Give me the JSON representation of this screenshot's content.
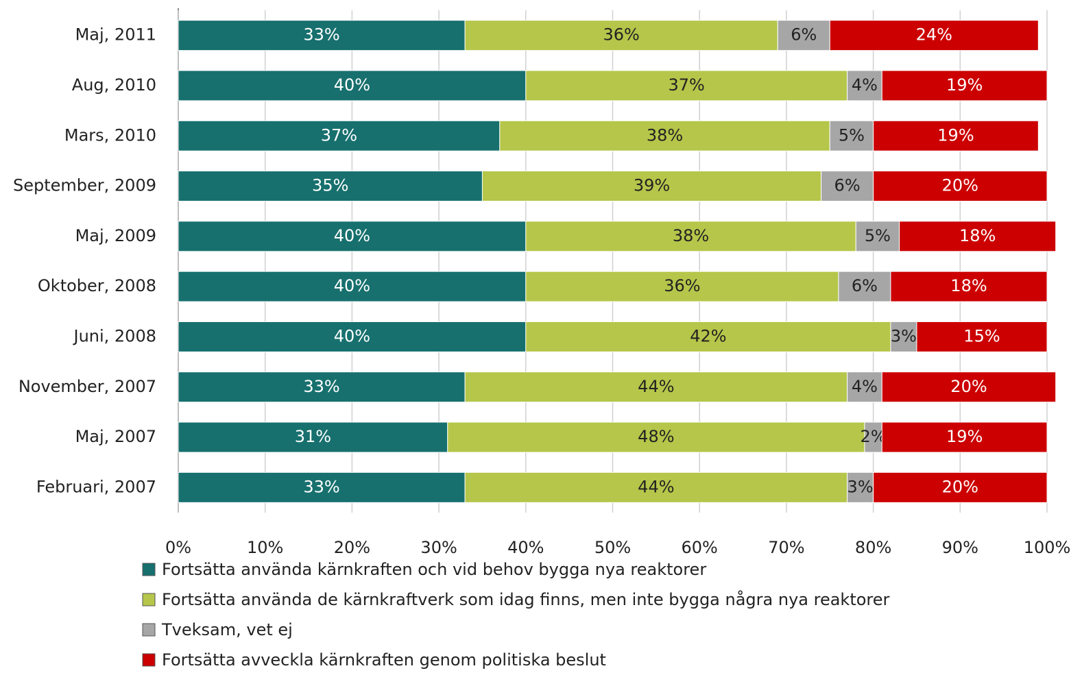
{
  "chart_data": {
    "type": "stacked_bar_horizontal",
    "categories": [
      "Maj, 2011",
      "Aug, 2010",
      "Mars, 2010",
      "September, 2009",
      "Maj, 2009",
      "Oktober, 2008",
      "Juni, 2008",
      "November, 2007",
      "Maj, 2007",
      "Februari, 2007"
    ],
    "series": [
      {
        "name": "Fortsätta använda kärnkraften och vid behov bygga nya reaktorer",
        "color": "#17706e",
        "values": [
          33,
          40,
          37,
          35,
          40,
          40,
          40,
          33,
          31,
          33
        ],
        "value_labels": [
          "33%",
          "40%",
          "37%",
          "35%",
          "40%",
          "40%",
          "40%",
          "33%",
          "31%",
          "33%"
        ]
      },
      {
        "name": "Fortsätta använda de kärnkraftverk som idag finns, men inte bygga några nya reaktorer",
        "color": "#b5c64a",
        "values": [
          36,
          37,
          38,
          39,
          38,
          36,
          42,
          44,
          48,
          44
        ],
        "value_labels": [
          "36%",
          "37%",
          "38%",
          "39%",
          "38%",
          "36%",
          "42%",
          "44%",
          "48%",
          "44%"
        ]
      },
      {
        "name": "Tveksam, vet ej",
        "color": "#a6a6a6",
        "values": [
          6,
          4,
          5,
          6,
          5,
          6,
          3,
          4,
          2,
          3
        ],
        "value_labels": [
          "6%",
          "4%",
          "5%",
          "6%",
          "5%",
          "6%",
          "3%",
          "4%",
          "2%",
          "3%"
        ]
      },
      {
        "name": "Fortsätta avveckla kärnkraften genom politiska beslut",
        "color": "#cc0000",
        "values": [
          24,
          19,
          19,
          20,
          18,
          18,
          15,
          20,
          19,
          20
        ],
        "value_labels": [
          "24%",
          "19%",
          "19%",
          "20%",
          "18%",
          "18%",
          "15%",
          "20%",
          "19%",
          "20%"
        ]
      }
    ],
    "xlim": [
      0,
      100
    ],
    "xticks": [
      {
        "value": 0,
        "label": "0%"
      },
      {
        "value": 10,
        "label": "10%"
      },
      {
        "value": 20,
        "label": "20%"
      },
      {
        "value": 30,
        "label": "30%"
      },
      {
        "value": 40,
        "label": "40%"
      },
      {
        "value": 50,
        "label": "50%"
      },
      {
        "value": 60,
        "label": "60%"
      },
      {
        "value": 70,
        "label": "70%"
      },
      {
        "value": 80,
        "label": "80%"
      },
      {
        "value": 90,
        "label": "90%"
      },
      {
        "value": 100,
        "label": "100%"
      }
    ],
    "grid": true,
    "legend": "bottom"
  }
}
